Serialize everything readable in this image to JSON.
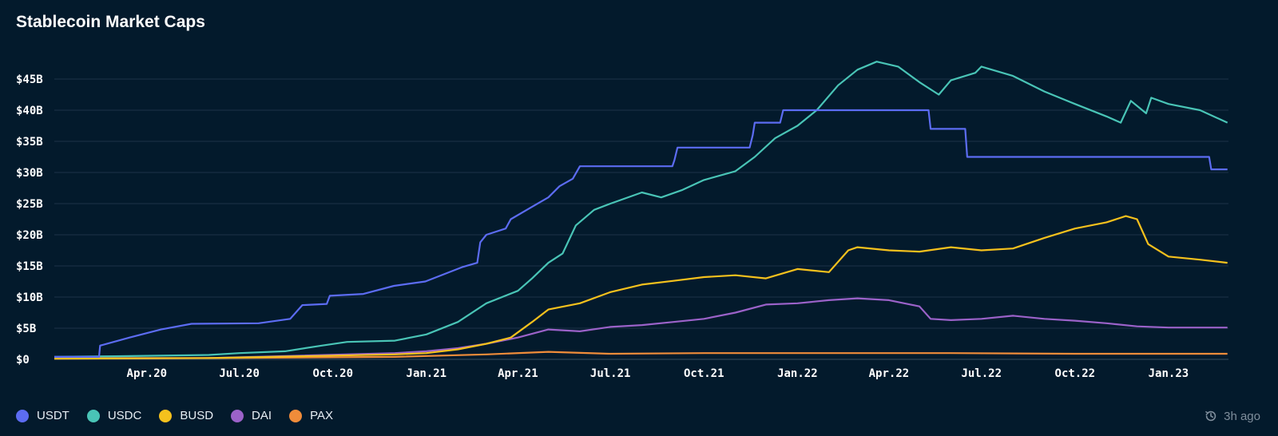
{
  "header": {
    "title": "Stablecoin Market Caps"
  },
  "updated": {
    "text": "3h ago",
    "icon": "clock-history-icon"
  },
  "colors": {
    "background": "#031a2c",
    "grid": "#1d3347",
    "USDT": "#5c6cf2",
    "USDC": "#49c4b6",
    "BUSD": "#f5c11d",
    "DAI": "#9b62c9",
    "PAX": "#f08c3a"
  },
  "chart_data": {
    "type": "line",
    "title": "Stablecoin Market Caps",
    "xlabel": "",
    "ylabel": "",
    "x_range": [
      "2020-01-01",
      "2023-03-01"
    ],
    "ylim": [
      0,
      50
    ],
    "y_unit": "B USD",
    "y_ticks": [
      0,
      5,
      10,
      15,
      20,
      25,
      30,
      35,
      40,
      45
    ],
    "y_tick_labels": [
      "$0",
      "$5B",
      "$10B",
      "$15B",
      "$20B",
      "$25B",
      "$30B",
      "$35B",
      "$40B",
      "$45B"
    ],
    "x_ticks": [
      "2020-04-01",
      "2020-07-01",
      "2020-10-01",
      "2021-01-01",
      "2021-04-01",
      "2021-07-01",
      "2021-10-01",
      "2022-01-01",
      "2022-04-01",
      "2022-07-01",
      "2022-10-01",
      "2023-01-01"
    ],
    "x_tick_labels": [
      "Apr.20",
      "Jul.20",
      "Oct.20",
      "Jan.21",
      "Apr.21",
      "Jul.21",
      "Oct.21",
      "Jan.22",
      "Apr.22",
      "Jul.22",
      "Oct.22",
      "Jan.23"
    ],
    "grid": true,
    "legend_position": "bottom-left",
    "series": [
      {
        "name": "USDT",
        "step": true,
        "points": [
          [
            "2020-01-01",
            0.4
          ],
          [
            "2020-02-14",
            0.4
          ],
          [
            "2020-02-15",
            2.2
          ],
          [
            "2020-03-15",
            3.5
          ],
          [
            "2020-04-15",
            4.8
          ],
          [
            "2020-05-15",
            5.7
          ],
          [
            "2020-07-20",
            5.8
          ],
          [
            "2020-08-20",
            6.5
          ],
          [
            "2020-09-01",
            8.7
          ],
          [
            "2020-09-25",
            8.9
          ],
          [
            "2020-09-28",
            10.2
          ],
          [
            "2020-10-31",
            10.5
          ],
          [
            "2020-11-30",
            11.8
          ],
          [
            "2020-12-31",
            12.5
          ],
          [
            "2021-02-05",
            14.8
          ],
          [
            "2021-02-20",
            15.5
          ],
          [
            "2021-02-23",
            18.8
          ],
          [
            "2021-03-01",
            20.0
          ],
          [
            "2021-03-20",
            21.0
          ],
          [
            "2021-03-25",
            22.5
          ],
          [
            "2021-04-15",
            24.5
          ],
          [
            "2021-05-01",
            26.0
          ],
          [
            "2021-05-12",
            27.8
          ],
          [
            "2021-05-25",
            29.0
          ],
          [
            "2021-06-01",
            31.0
          ],
          [
            "2021-08-31",
            31.0
          ],
          [
            "2021-09-02",
            32.0
          ],
          [
            "2021-09-05",
            34.0
          ],
          [
            "2021-11-15",
            34.0
          ],
          [
            "2021-11-18",
            36.0
          ],
          [
            "2021-11-20",
            38.0
          ],
          [
            "2021-12-15",
            38.0
          ],
          [
            "2021-12-18",
            40.0
          ],
          [
            "2022-05-10",
            40.0
          ],
          [
            "2022-05-12",
            37.0
          ],
          [
            "2022-06-15",
            37.0
          ],
          [
            "2022-06-17",
            32.5
          ],
          [
            "2023-02-10",
            32.5
          ],
          [
            "2023-02-12",
            30.5
          ],
          [
            "2023-02-28",
            30.5
          ]
        ]
      },
      {
        "name": "USDC",
        "step": false,
        "points": [
          [
            "2020-01-01",
            0.4
          ],
          [
            "2020-03-01",
            0.5
          ],
          [
            "2020-06-01",
            0.7
          ],
          [
            "2020-07-01",
            1.0
          ],
          [
            "2020-08-15",
            1.3
          ],
          [
            "2020-09-20",
            2.2
          ],
          [
            "2020-10-15",
            2.8
          ],
          [
            "2020-12-01",
            3.0
          ],
          [
            "2021-01-01",
            4.0
          ],
          [
            "2021-02-01",
            6.0
          ],
          [
            "2021-03-01",
            9.0
          ],
          [
            "2021-04-01",
            11.0
          ],
          [
            "2021-04-15",
            13.0
          ],
          [
            "2021-05-01",
            15.5
          ],
          [
            "2021-05-15",
            17.0
          ],
          [
            "2021-05-28",
            21.5
          ],
          [
            "2021-06-15",
            24.0
          ],
          [
            "2021-07-01",
            25.0
          ],
          [
            "2021-08-01",
            26.8
          ],
          [
            "2021-08-20",
            26.0
          ],
          [
            "2021-09-10",
            27.2
          ],
          [
            "2021-10-01",
            28.8
          ],
          [
            "2021-11-01",
            30.2
          ],
          [
            "2021-11-20",
            32.5
          ],
          [
            "2021-12-10",
            35.5
          ],
          [
            "2022-01-01",
            37.5
          ],
          [
            "2022-01-20",
            40.0
          ],
          [
            "2022-02-10",
            44.0
          ],
          [
            "2022-03-01",
            46.5
          ],
          [
            "2022-03-20",
            47.8
          ],
          [
            "2022-04-10",
            47.0
          ],
          [
            "2022-05-01",
            44.5
          ],
          [
            "2022-05-20",
            42.5
          ],
          [
            "2022-06-01",
            44.8
          ],
          [
            "2022-06-25",
            46.0
          ],
          [
            "2022-07-01",
            47.0
          ],
          [
            "2022-08-01",
            45.5
          ],
          [
            "2022-09-01",
            43.0
          ],
          [
            "2022-10-01",
            41.0
          ],
          [
            "2022-11-01",
            39.0
          ],
          [
            "2022-11-15",
            38.0
          ],
          [
            "2022-11-25",
            41.5
          ],
          [
            "2022-12-10",
            39.5
          ],
          [
            "2022-12-15",
            42.0
          ],
          [
            "2023-01-01",
            41.0
          ],
          [
            "2023-02-01",
            40.0
          ],
          [
            "2023-02-28",
            38.0
          ]
        ]
      },
      {
        "name": "BUSD",
        "step": false,
        "points": [
          [
            "2020-01-01",
            0.1
          ],
          [
            "2020-06-01",
            0.2
          ],
          [
            "2020-09-01",
            0.5
          ],
          [
            "2020-12-01",
            0.8
          ],
          [
            "2021-01-01",
            1.0
          ],
          [
            "2021-02-01",
            1.6
          ],
          [
            "2021-03-01",
            2.5
          ],
          [
            "2021-03-25",
            3.5
          ],
          [
            "2021-04-15",
            6.0
          ],
          [
            "2021-05-01",
            8.0
          ],
          [
            "2021-06-01",
            9.0
          ],
          [
            "2021-07-01",
            10.8
          ],
          [
            "2021-08-01",
            12.0
          ],
          [
            "2021-09-01",
            12.6
          ],
          [
            "2021-10-01",
            13.2
          ],
          [
            "2021-11-01",
            13.5
          ],
          [
            "2021-12-01",
            13.0
          ],
          [
            "2022-01-01",
            14.5
          ],
          [
            "2022-02-01",
            14.0
          ],
          [
            "2022-02-20",
            17.5
          ],
          [
            "2022-03-01",
            18.0
          ],
          [
            "2022-04-01",
            17.5
          ],
          [
            "2022-05-01",
            17.3
          ],
          [
            "2022-06-01",
            18.0
          ],
          [
            "2022-07-01",
            17.5
          ],
          [
            "2022-08-01",
            17.8
          ],
          [
            "2022-09-01",
            19.5
          ],
          [
            "2022-10-01",
            21.0
          ],
          [
            "2022-11-01",
            22.0
          ],
          [
            "2022-11-20",
            23.0
          ],
          [
            "2022-12-01",
            22.5
          ],
          [
            "2022-12-12",
            18.5
          ],
          [
            "2023-01-01",
            16.5
          ],
          [
            "2023-02-01",
            16.0
          ],
          [
            "2023-02-28",
            15.5
          ]
        ]
      },
      {
        "name": "DAI",
        "step": false,
        "points": [
          [
            "2020-01-01",
            0.1
          ],
          [
            "2020-06-01",
            0.2
          ],
          [
            "2020-09-01",
            0.6
          ],
          [
            "2020-12-01",
            1.0
          ],
          [
            "2021-01-01",
            1.3
          ],
          [
            "2021-02-01",
            1.8
          ],
          [
            "2021-03-01",
            2.5
          ],
          [
            "2021-04-01",
            3.5
          ],
          [
            "2021-05-01",
            4.8
          ],
          [
            "2021-06-01",
            4.5
          ],
          [
            "2021-07-01",
            5.2
          ],
          [
            "2021-08-01",
            5.5
          ],
          [
            "2021-09-01",
            6.0
          ],
          [
            "2021-10-01",
            6.5
          ],
          [
            "2021-11-01",
            7.5
          ],
          [
            "2021-12-01",
            8.8
          ],
          [
            "2022-01-01",
            9.0
          ],
          [
            "2022-02-01",
            9.5
          ],
          [
            "2022-03-01",
            9.8
          ],
          [
            "2022-04-01",
            9.5
          ],
          [
            "2022-05-01",
            8.5
          ],
          [
            "2022-05-12",
            6.5
          ],
          [
            "2022-06-01",
            6.3
          ],
          [
            "2022-07-01",
            6.5
          ],
          [
            "2022-08-01",
            7.0
          ],
          [
            "2022-09-01",
            6.5
          ],
          [
            "2022-10-01",
            6.2
          ],
          [
            "2022-11-01",
            5.8
          ],
          [
            "2022-12-01",
            5.3
          ],
          [
            "2023-01-01",
            5.1
          ],
          [
            "2023-02-28",
            5.1
          ]
        ]
      },
      {
        "name": "PAX",
        "step": false,
        "points": [
          [
            "2020-01-01",
            0.2
          ],
          [
            "2020-06-01",
            0.2
          ],
          [
            "2020-12-01",
            0.4
          ],
          [
            "2021-03-01",
            0.8
          ],
          [
            "2021-05-01",
            1.2
          ],
          [
            "2021-07-01",
            0.9
          ],
          [
            "2021-10-01",
            1.0
          ],
          [
            "2022-01-01",
            1.0
          ],
          [
            "2022-06-01",
            1.0
          ],
          [
            "2022-10-01",
            0.9
          ],
          [
            "2023-02-28",
            0.9
          ]
        ]
      }
    ]
  }
}
